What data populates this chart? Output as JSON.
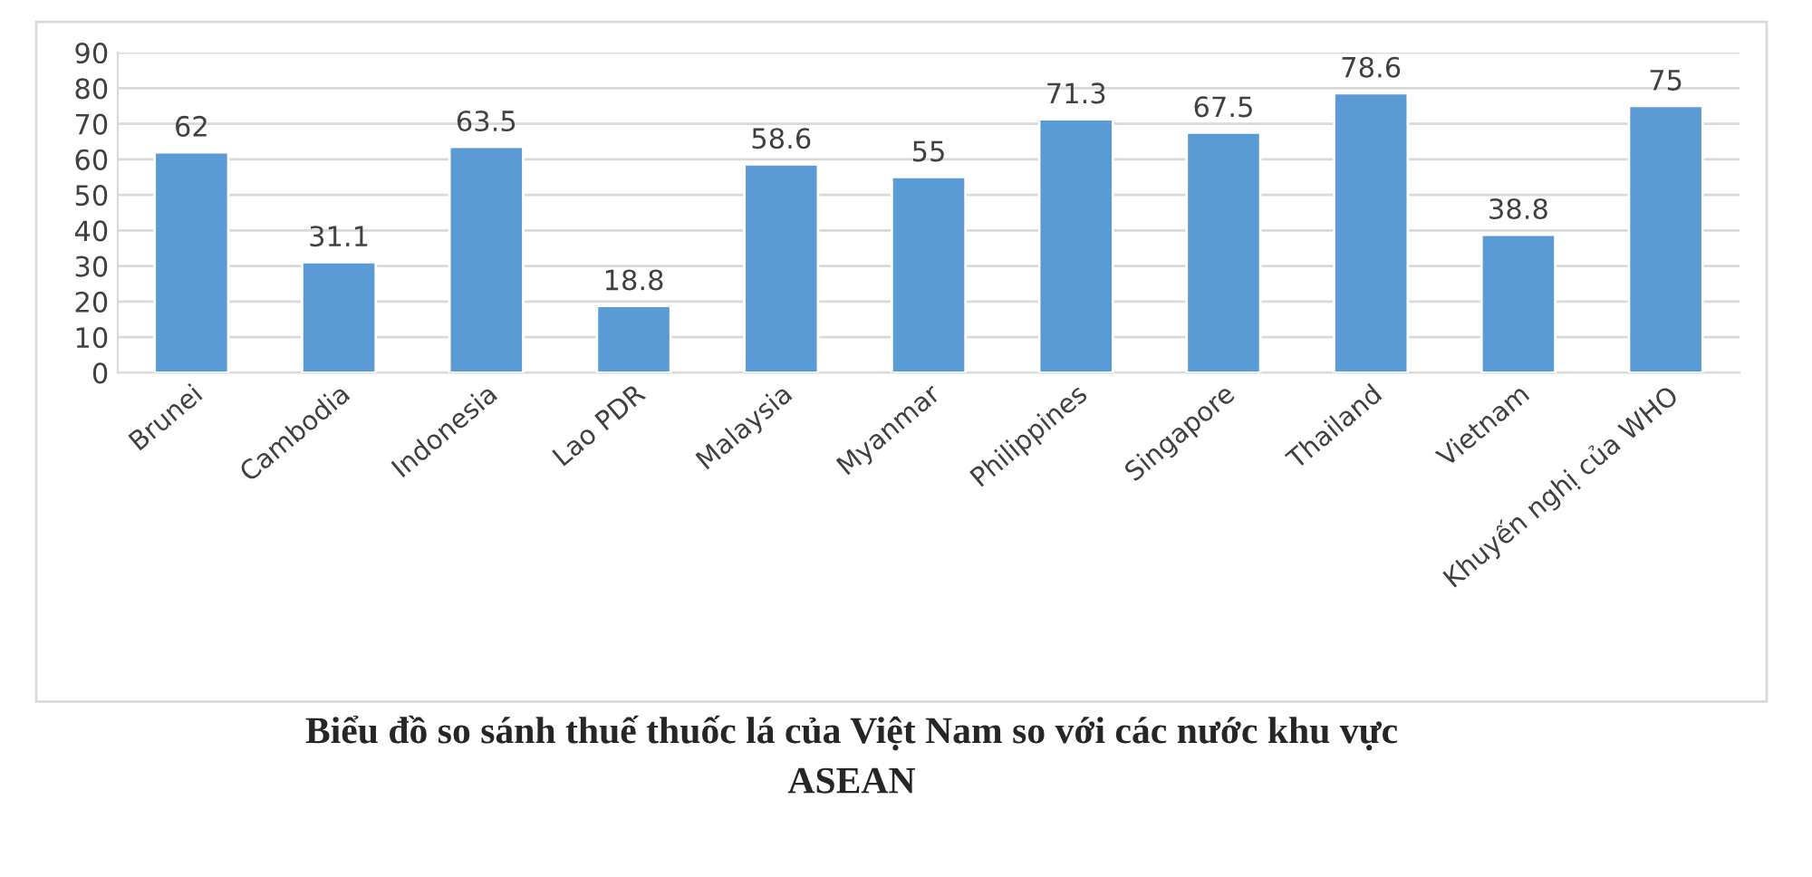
{
  "chart_data": {
    "type": "bar",
    "title": "Biểu đồ so sánh thuế thuốc lá của Việt Nam so với các nước khu vực\nASEAN",
    "categories": [
      "Brunei",
      "Cambodia",
      "Indonesia",
      "Lao PDR",
      "Malaysia",
      "Myanmar",
      "Philippines",
      "Singapore",
      "Thailand",
      "Vietnam",
      "Khuyến nghị của WHO"
    ],
    "values": [
      62,
      31.1,
      63.5,
      18.8,
      58.6,
      55,
      71.3,
      67.5,
      78.6,
      38.8,
      75
    ],
    "color": "#5b9bd5",
    "ylim": [
      0,
      90
    ],
    "yticks": [
      0,
      10,
      20,
      30,
      40,
      50,
      60,
      70,
      80,
      90
    ],
    "grid": "y",
    "data_labels": true
  }
}
